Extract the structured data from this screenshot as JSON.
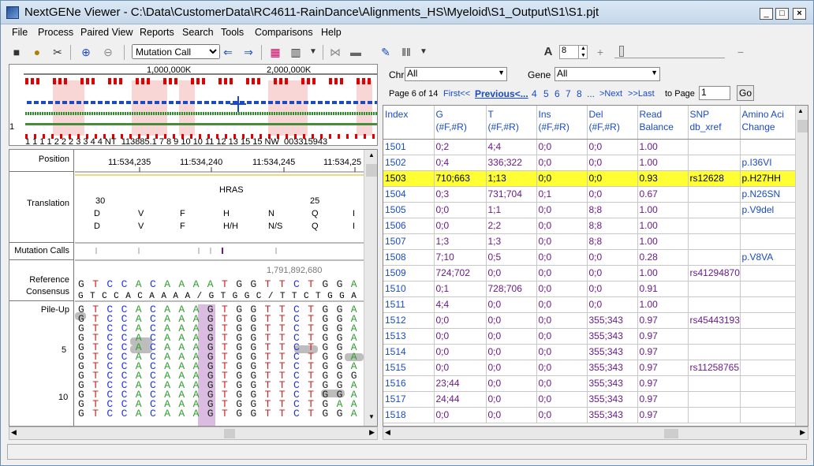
{
  "title": "NextGENe Viewer - C:\\Data\\CustomerData\\RC4611-RainDance\\Alignments_HS\\Myeloid\\S1_Output\\S1\\S1.pjt",
  "menu": [
    "File",
    "Process",
    "Paired View",
    "Reports",
    "Search",
    "Tools",
    "Comparisons",
    "Help"
  ],
  "toolbar": {
    "mode_value": "Mutation Call",
    "font_size": "8"
  },
  "overview": {
    "ruler": [
      "1,000,000K",
      "2,000,000K"
    ],
    "chrom_labels": "1  1 1 1  2 2  2  3    3 4    4 NT_113885.1  7  8  9  10 10  11   12 13  15 15 NW_003315943",
    "row_label": "1"
  },
  "left": {
    "labels": {
      "position": "Position",
      "translation": "Translation",
      "mutation": "Mutation Calls",
      "reference": "Reference",
      "consensus": "Consensus",
      "pileup": "Pile-Up",
      "n5": "5",
      "n10": "10"
    },
    "positions": [
      "11:534,235",
      "11:534,240",
      "11:534,245",
      "11:534,25"
    ],
    "gene": "HRAS",
    "codon_left": "30",
    "codon_right": "25",
    "aa_row1": [
      "D",
      "V",
      "F",
      "H",
      "N",
      "Q",
      "I"
    ],
    "aa_row2": [
      "D",
      "V",
      "F",
      "H/H",
      "N/S",
      "Q",
      "I"
    ],
    "coord": "1,791,892,680",
    "reference": "GTCCACAAAATGGTTCTGGA",
    "consensus": "GTCCACAAAA/GTGGC/TTCTGGA",
    "pileup": [
      "GTCCACAAAGTGGTTCTGGA",
      "GTCCACAAAGTGGTTCTGGA",
      "GTCCACAAAGTGGTTCTGGA",
      "GTCCACAAAGTGGTTCTGGA",
      "GTCCACAAAGTGGTTCTGGA",
      "GTCCACAAAGTGGTTCTGGA",
      "GTCCACAAAGTGGTTCTGGA",
      "GTCCACAAAGTGGTTCTGGG",
      "GTCCACAAAGTGGTTCTGGA",
      "GTCCACAAAGTGGTTCTGGA",
      "GTCCACAAAGTGGTTCTGAA",
      "GTCCACAAAGTGGTTCTGGA"
    ]
  },
  "filters": {
    "chr_label": "Chr",
    "chr_value": "All",
    "gene_label": "Gene",
    "gene_value": "All"
  },
  "pager": {
    "page_text": "Page 6 of 14",
    "first": "First<<",
    "previous": "Previous<...",
    "pages": [
      "4",
      "5",
      "6",
      "7",
      "8",
      "..."
    ],
    "next": ">Next",
    ">>last": ">>Last",
    "to_page_label": "to Page",
    "to_page_value": "1",
    "go": "Go"
  },
  "grid": {
    "headers": [
      [
        "Index",
        ""
      ],
      [
        "G",
        "(#F,#R)"
      ],
      [
        "T",
        "(#F,#R)"
      ],
      [
        "Ins",
        "(#F,#R)"
      ],
      [
        "Del",
        "(#F,#R)"
      ],
      [
        "Read",
        "Balance"
      ],
      [
        "SNP",
        "db_xref"
      ],
      [
        "Amino Aci",
        "Change"
      ]
    ],
    "rows": [
      [
        "1501",
        "0;2",
        "4;4",
        "0;0",
        "0;0",
        "1.00",
        "",
        ""
      ],
      [
        "1502",
        "0;4",
        "336;322",
        "0;0",
        "0;0",
        "1.00",
        "",
        "p.I36VI"
      ],
      [
        "1503",
        "710;663",
        "1;13",
        "0;0",
        "0;0",
        "0.93",
        "rs12628",
        "p.H27HH"
      ],
      [
        "1504",
        "0;3",
        "731;704",
        "0;1",
        "0;0",
        "0.67",
        "",
        "p.N26SN"
      ],
      [
        "1505",
        "0;0",
        "1;1",
        "0;0",
        "8;8",
        "1.00",
        "",
        "p.V9del"
      ],
      [
        "1506",
        "0;0",
        "2;2",
        "0;0",
        "8;8",
        "1.00",
        "",
        ""
      ],
      [
        "1507",
        "1;3",
        "1;3",
        "0;0",
        "8;8",
        "1.00",
        "",
        ""
      ],
      [
        "1508",
        "7;10",
        "0;5",
        "0;0",
        "0;0",
        "0.28",
        "",
        "p.V8VA"
      ],
      [
        "1509",
        "724;702",
        "0;0",
        "0;0",
        "0;0",
        "1.00",
        "rs41294870",
        ""
      ],
      [
        "1510",
        "0;1",
        "728;706",
        "0;0",
        "0;0",
        "0.91",
        "",
        ""
      ],
      [
        "1511",
        "4;4",
        "0;0",
        "0;0",
        "0;0",
        "1.00",
        "",
        ""
      ],
      [
        "1512",
        "0;0",
        "0;0",
        "0;0",
        "355;343",
        "0.97",
        "rs45443193",
        ""
      ],
      [
        "1513",
        "0;0",
        "0;0",
        "0;0",
        "355;343",
        "0.97",
        "",
        ""
      ],
      [
        "1514",
        "0;0",
        "0;0",
        "0;0",
        "355;343",
        "0.97",
        "",
        ""
      ],
      [
        "1515",
        "0;0",
        "0;0",
        "0;0",
        "355;343",
        "0.97",
        "rs11258765",
        ""
      ],
      [
        "1516",
        "23;44",
        "0;0",
        "0;0",
        "355;343",
        "0.97",
        "",
        ""
      ],
      [
        "1517",
        "24;44",
        "0;0",
        "0;0",
        "355;343",
        "0.97",
        "",
        ""
      ],
      [
        "1518",
        "0;0",
        "0;0",
        "0;0",
        "355;343",
        "0.97",
        "",
        ""
      ]
    ],
    "highlight_index": "1503"
  },
  "colors": {
    "highlight": "#ffff33",
    "link": "#1a4bc4",
    "purple": "#6a1a8a",
    "A": "#2e9e2e",
    "C": "#2233dd",
    "G": "#222222",
    "T": "#d02020"
  }
}
